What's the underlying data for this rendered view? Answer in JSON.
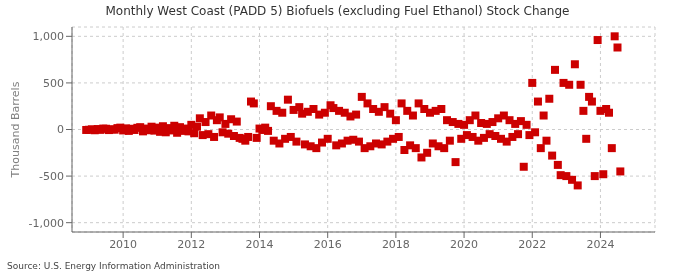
{
  "chart_data": {
    "type": "scatter",
    "title": "Monthly West Coast (PADD 5) Biofuels (excluding Fuel Ethanol) Stock Change",
    "y_label": "Thousand Barrels",
    "annotations": [
      "Source: U.S. Energy Information Administration"
    ],
    "color": "#cc0000",
    "marker": "square",
    "grid": true,
    "xlim": [
      2008.5,
      2025.6
    ],
    "xticks": [
      2010,
      2012,
      2014,
      2016,
      2018,
      2020,
      2022,
      2024
    ],
    "ylim": [
      -1100,
      1100
    ],
    "yticks": [
      {
        "value": -1000,
        "label": "-1,000"
      },
      -500,
      0,
      500,
      {
        "value": 1000,
        "label": "1,000"
      }
    ],
    "x": [
      2008.917,
      2009.0,
      2009.083,
      2009.167,
      2009.25,
      2009.333,
      2009.417,
      2009.5,
      2009.583,
      2009.667,
      2009.75,
      2009.833,
      2009.917,
      2010.0,
      2010.083,
      2010.167,
      2010.25,
      2010.333,
      2010.417,
      2010.5,
      2010.583,
      2010.667,
      2010.75,
      2010.833,
      2010.917,
      2011.0,
      2011.083,
      2011.167,
      2011.25,
      2011.333,
      2011.417,
      2011.5,
      2011.583,
      2011.667,
      2011.75,
      2011.833,
      2011.917,
      2012.0,
      2012.083,
      2012.167,
      2012.25,
      2012.333,
      2012.417,
      2012.5,
      2012.583,
      2012.667,
      2012.75,
      2012.833,
      2012.917,
      2013.0,
      2013.083,
      2013.167,
      2013.25,
      2013.333,
      2013.417,
      2013.5,
      2013.583,
      2013.667,
      2013.75,
      2013.833,
      2013.917,
      2014.0,
      2014.083,
      2014.167,
      2014.25,
      2014.333,
      2014.417,
      2014.5,
      2014.583,
      2014.667,
      2014.75,
      2014.833,
      2014.917,
      2015.0,
      2015.083,
      2015.167,
      2015.25,
      2015.333,
      2015.417,
      2015.5,
      2015.583,
      2015.667,
      2015.75,
      2015.833,
      2015.917,
      2016.0,
      2016.083,
      2016.167,
      2016.25,
      2016.333,
      2016.417,
      2016.5,
      2016.583,
      2016.667,
      2016.75,
      2016.833,
      2016.917,
      2017.0,
      2017.083,
      2017.167,
      2017.25,
      2017.333,
      2017.417,
      2017.5,
      2017.583,
      2017.667,
      2017.75,
      2017.833,
      2017.917,
      2018.0,
      2018.083,
      2018.167,
      2018.25,
      2018.333,
      2018.417,
      2018.5,
      2018.583,
      2018.667,
      2018.75,
      2018.833,
      2018.917,
      2019.0,
      2019.083,
      2019.167,
      2019.25,
      2019.333,
      2019.417,
      2019.5,
      2019.583,
      2019.667,
      2019.75,
      2019.833,
      2019.917,
      2020.0,
      2020.083,
      2020.167,
      2020.25,
      2020.333,
      2020.417,
      2020.5,
      2020.583,
      2020.667,
      2020.75,
      2020.833,
      2020.917,
      2021.0,
      2021.083,
      2021.167,
      2021.25,
      2021.333,
      2021.417,
      2021.5,
      2021.583,
      2021.667,
      2021.75,
      2021.833,
      2021.917,
      2022.0,
      2022.083,
      2022.167,
      2022.25,
      2022.333,
      2022.417,
      2022.5,
      2022.583,
      2022.667,
      2022.75,
      2022.833,
      2022.917,
      2023.0,
      2023.083,
      2023.167,
      2023.25,
      2023.333,
      2023.417,
      2023.5,
      2023.583,
      2023.667,
      2023.75,
      2023.833,
      2023.917,
      2024.0,
      2024.083,
      2024.167,
      2024.25,
      2024.333,
      2024.417,
      2024.5,
      2024.583
    ],
    "values": [
      -5,
      -3,
      2,
      -8,
      5,
      -4,
      10,
      8,
      -6,
      3,
      -2,
      15,
      20,
      -10,
      12,
      -15,
      8,
      -5,
      18,
      25,
      -20,
      10,
      -8,
      30,
      -12,
      20,
      -25,
      35,
      -30,
      15,
      -10,
      40,
      -35,
      25,
      -15,
      10,
      -20,
      50,
      -40,
      30,
      120,
      -60,
      80,
      -50,
      150,
      -80,
      100,
      130,
      -30,
      60,
      -45,
      110,
      -70,
      85,
      -90,
      -100,
      -120,
      -80,
      300,
      280,
      -90,
      10,
      -5,
      20,
      -15,
      250,
      -120,
      200,
      -150,
      180,
      -100,
      320,
      -80,
      210,
      -130,
      240,
      170,
      -160,
      190,
      -180,
      220,
      -200,
      160,
      -140,
      180,
      -100,
      260,
      230,
      -170,
      200,
      -150,
      180,
      -120,
      140,
      -110,
      160,
      -130,
      350,
      -200,
      280,
      -180,
      220,
      -150,
      190,
      -160,
      240,
      -130,
      170,
      -100,
      100,
      -80,
      280,
      -220,
      200,
      -170,
      150,
      -200,
      280,
      -300,
      220,
      -250,
      180,
      -150,
      200,
      -180,
      220,
      -200,
      100,
      -120,
      80,
      -350,
      60,
      -100,
      50,
      -60,
      100,
      -80,
      150,
      -120,
      70,
      -90,
      60,
      -50,
      80,
      -70,
      120,
      -100,
      150,
      -130,
      100,
      -80,
      60,
      -50,
      90,
      -400,
      50,
      -60,
      500,
      -30,
      300,
      -200,
      150,
      -120,
      330,
      -280,
      640,
      -380,
      -490,
      500,
      -500,
      480,
      -540,
      700,
      -600,
      480,
      200,
      -100,
      350,
      300,
      -500,
      960,
      200,
      -480,
      220,
      180,
      -200,
      1000,
      880,
      -450
    ]
  }
}
